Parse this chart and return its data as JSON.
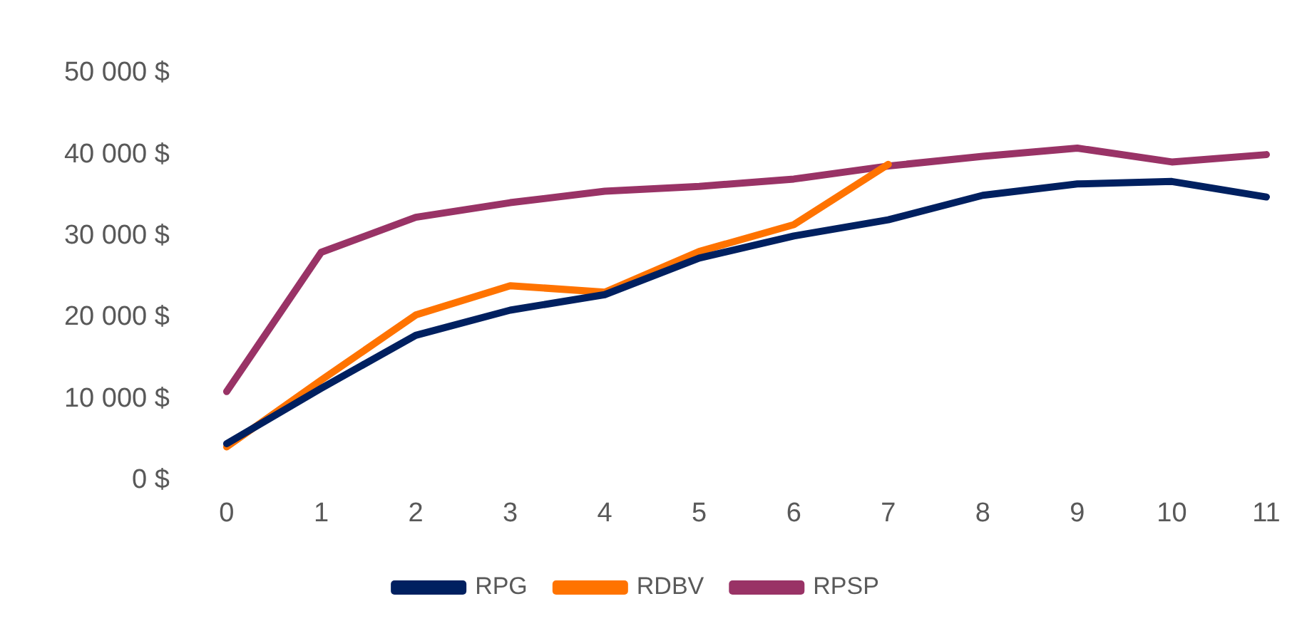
{
  "chart_data": {
    "type": "line",
    "categories": [
      "0",
      "1",
      "2",
      "3",
      "4",
      "5",
      "6",
      "7",
      "8",
      "9",
      "10",
      "11"
    ],
    "series": [
      {
        "name": "RPG",
        "color": "#002060",
        "values": [
          4500,
          11300,
          17800,
          20900,
          22800,
          27300,
          30000,
          32000,
          35000,
          36400,
          36700,
          34800
        ]
      },
      {
        "name": "RDBV",
        "color": "#ff7300",
        "values": [
          4100,
          12300,
          20300,
          23900,
          23100,
          28100,
          31400,
          38800,
          null,
          null,
          null,
          null
        ]
      },
      {
        "name": "RPSP",
        "color": "#993366",
        "values": [
          10900,
          28000,
          32300,
          34100,
          35500,
          36100,
          37000,
          38600,
          39800,
          40800,
          39100,
          40000
        ]
      }
    ],
    "ylim": [
      0,
      50000
    ],
    "yticks": [
      {
        "value": 0,
        "label": "0 $"
      },
      {
        "value": 10000,
        "label": "10 000 $"
      },
      {
        "value": 20000,
        "label": "20 000 $"
      },
      {
        "value": 30000,
        "label": "30 000 $"
      },
      {
        "value": 40000,
        "label": "40 000 $"
      },
      {
        "value": 50000,
        "label": "50 000 $"
      }
    ],
    "grid": false,
    "legend": "bottom",
    "marker": "none",
    "line_style": "solid"
  }
}
